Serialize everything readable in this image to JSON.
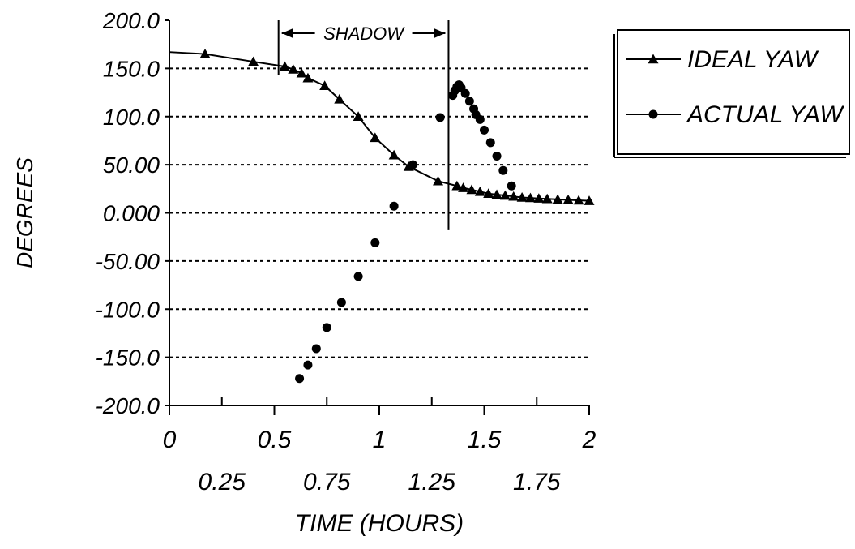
{
  "chart_data": {
    "type": "line",
    "title": "",
    "xlabel": "TIME (HOURS)",
    "ylabel": "DEGREES",
    "xlim": [
      0,
      2
    ],
    "ylim": [
      -200,
      200
    ],
    "grid": {
      "y_dashed": true,
      "x": false
    },
    "legend_position": "right",
    "y_ticks": [
      {
        "value": 200,
        "label": "200.0"
      },
      {
        "value": 150,
        "label": "150.0"
      },
      {
        "value": 100,
        "label": "100.0"
      },
      {
        "value": 50,
        "label": "50.00"
      },
      {
        "value": 0,
        "label": "0.000"
      },
      {
        "value": -50,
        "label": "-50.00"
      },
      {
        "value": -100,
        "label": "-100.0"
      },
      {
        "value": -150,
        "label": "-150.0"
      },
      {
        "value": -200,
        "label": "-200.0"
      }
    ],
    "x_ticks_major": [
      {
        "value": 0,
        "label": "0"
      },
      {
        "value": 0.5,
        "label": "0.5"
      },
      {
        "value": 1,
        "label": "1"
      },
      {
        "value": 1.5,
        "label": "1.5"
      },
      {
        "value": 2,
        "label": "2"
      }
    ],
    "x_ticks_minor": [
      {
        "value": 0.25,
        "label": "0.25"
      },
      {
        "value": 0.75,
        "label": "0.75"
      },
      {
        "value": 1.25,
        "label": "1.25"
      },
      {
        "value": 1.75,
        "label": "1.75"
      }
    ],
    "shadow": {
      "label": "SHADOW",
      "start": 0.52,
      "end": 1.33
    },
    "series": [
      {
        "name": "IDEAL YAW",
        "marker": "triangle",
        "line": true,
        "x": [
          0.0,
          0.17,
          0.4,
          0.55,
          0.59,
          0.63,
          0.66,
          0.74,
          0.81,
          0.9,
          0.98,
          1.07,
          1.14,
          1.28,
          1.37,
          1.4,
          1.44,
          1.48,
          1.52,
          1.56,
          1.6,
          1.64,
          1.68,
          1.72,
          1.76,
          1.8,
          1.85,
          1.9,
          1.95,
          2.0
        ],
        "y": [
          167,
          165,
          157,
          152,
          149,
          145,
          140,
          132,
          118,
          100,
          78,
          60,
          48,
          33,
          28,
          26,
          24,
          22,
          20,
          19,
          18,
          17,
          16,
          15.5,
          15,
          14.5,
          14,
          13.5,
          13,
          12.5
        ]
      },
      {
        "name": "ACTUAL YAW",
        "marker": "circle",
        "line": false,
        "x": [
          0.62,
          0.66,
          0.7,
          0.75,
          0.82,
          0.9,
          0.98,
          1.07,
          1.16,
          1.29,
          1.35,
          1.36,
          1.37,
          1.38,
          1.39,
          1.41,
          1.43,
          1.45,
          1.46,
          1.48,
          1.5,
          1.53,
          1.56,
          1.59,
          1.63
        ],
        "y": [
          -172,
          -158,
          -141,
          -119,
          -93,
          -66,
          -31,
          7,
          50,
          99,
          122,
          127,
          131,
          133,
          130,
          124,
          116,
          108,
          102,
          97,
          86,
          73,
          59,
          44,
          28
        ]
      }
    ]
  }
}
